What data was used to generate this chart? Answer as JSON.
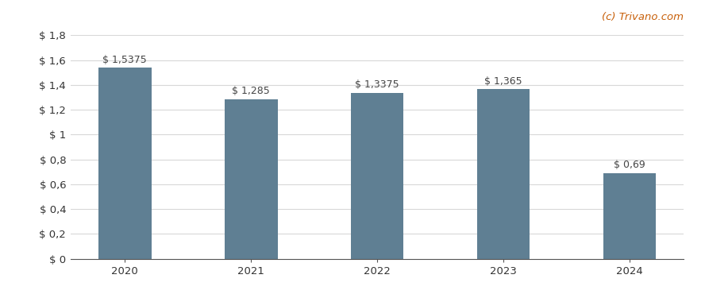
{
  "categories": [
    "2020",
    "2021",
    "2022",
    "2023",
    "2024"
  ],
  "values": [
    1.5375,
    1.285,
    1.3375,
    1.365,
    0.69
  ],
  "labels": [
    "$ 1,5375",
    "$ 1,285",
    "$ 1,3375",
    "$ 1,365",
    "$ 0,69"
  ],
  "bar_color": "#5f7f93",
  "background_color": "#ffffff",
  "ylim": [
    0,
    1.8
  ],
  "yticks": [
    0,
    0.2,
    0.4,
    0.6,
    0.8,
    1.0,
    1.2,
    1.4,
    1.6,
    1.8
  ],
  "ytick_labels": [
    "$ 0",
    "$ 0,2",
    "$ 0,4",
    "$ 0,6",
    "$ 0,8",
    "$ 1",
    "$ 1,2",
    "$ 1,4",
    "$ 1,6",
    "$ 1,8"
  ],
  "watermark": "(c) Trivano.com",
  "watermark_color": "#c8600a",
  "grid_color": "#d8d8d8",
  "label_fontsize": 9,
  "tick_fontsize": 9.5,
  "watermark_fontsize": 9.5,
  "bar_width": 0.42,
  "label_color": "#444444"
}
